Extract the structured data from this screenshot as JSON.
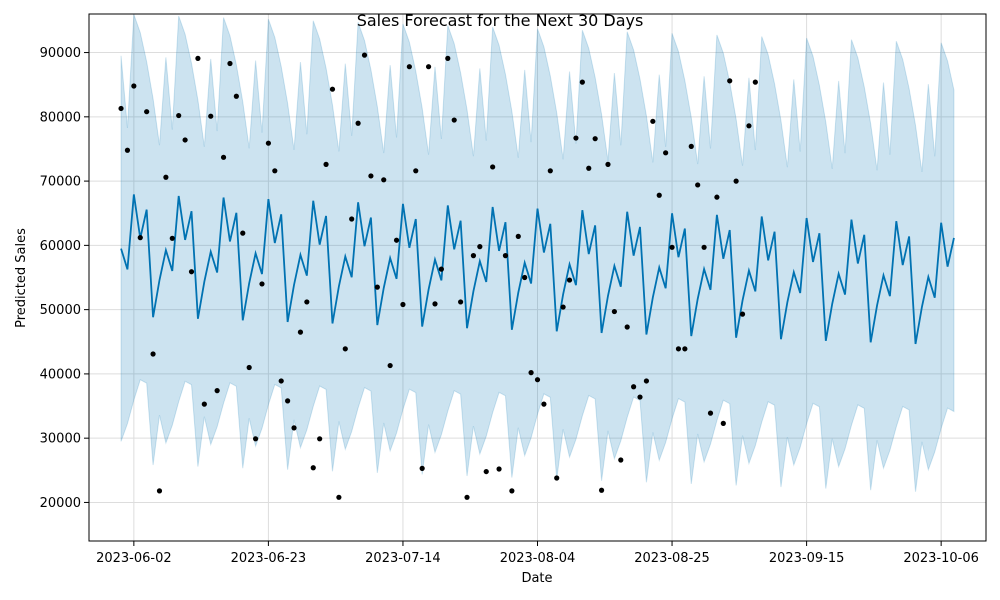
{
  "chart_data": {
    "type": "line",
    "title": "Sales Forecast for the Next 30 Days",
    "xlabel": "Date",
    "ylabel": "Predicted Sales",
    "x_range": [
      "2023-05-26",
      "2023-10-13"
    ],
    "ylim": [
      14000,
      96000
    ],
    "grid": true,
    "x_ticks": [
      "2023-06-02",
      "2023-06-23",
      "2023-07-14",
      "2023-08-04",
      "2023-08-25",
      "2023-09-15",
      "2023-10-06"
    ],
    "y_ticks": [
      20000,
      30000,
      40000,
      50000,
      60000,
      70000,
      80000,
      90000
    ],
    "y_tick_labels": [
      "20000",
      "30000",
      "40000",
      "50000",
      "60000",
      "70000",
      "80000",
      "90000"
    ],
    "colors": {
      "line": "#0072b2",
      "band": "#0072b2",
      "points": "#000000",
      "grid": "#dddddd"
    },
    "weekly_pattern": [
      59500,
      56300,
      68000,
      61200,
      65700,
      49000,
      54800
    ],
    "trend_per_day": -35,
    "interval_half_width": 26000,
    "forecast_start": "2023-05-31",
    "forecast_end": "2023-10-08",
    "observed": [
      {
        "x": "2023-05-31",
        "y": 81300
      },
      {
        "x": "2023-06-01",
        "y": 74800
      },
      {
        "x": "2023-06-02",
        "y": 84800
      },
      {
        "x": "2023-06-03",
        "y": 61200
      },
      {
        "x": "2023-06-04",
        "y": 80800
      },
      {
        "x": "2023-06-05",
        "y": 43100
      },
      {
        "x": "2023-06-06",
        "y": 21800
      },
      {
        "x": "2023-06-07",
        "y": 70600
      },
      {
        "x": "2023-06-08",
        "y": 61100
      },
      {
        "x": "2023-06-09",
        "y": 80200
      },
      {
        "x": "2023-06-10",
        "y": 76400
      },
      {
        "x": "2023-06-11",
        "y": 55900
      },
      {
        "x": "2023-06-12",
        "y": 89100
      },
      {
        "x": "2023-06-13",
        "y": 35300
      },
      {
        "x": "2023-06-14",
        "y": 80100
      },
      {
        "x": "2023-06-15",
        "y": 37400
      },
      {
        "x": "2023-06-16",
        "y": 73700
      },
      {
        "x": "2023-06-17",
        "y": 88300
      },
      {
        "x": "2023-06-18",
        "y": 83200
      },
      {
        "x": "2023-06-19",
        "y": 61900
      },
      {
        "x": "2023-06-20",
        "y": 41000
      },
      {
        "x": "2023-06-21",
        "y": 29900
      },
      {
        "x": "2023-06-22",
        "y": 54000
      },
      {
        "x": "2023-06-23",
        "y": 75900
      },
      {
        "x": "2023-06-24",
        "y": 71600
      },
      {
        "x": "2023-06-25",
        "y": 38900
      },
      {
        "x": "2023-06-26",
        "y": 35800
      },
      {
        "x": "2023-06-27",
        "y": 31600
      },
      {
        "x": "2023-06-28",
        "y": 46500
      },
      {
        "x": "2023-06-29",
        "y": 51200
      },
      {
        "x": "2023-06-30",
        "y": 25400
      },
      {
        "x": "2023-07-01",
        "y": 29900
      },
      {
        "x": "2023-07-02",
        "y": 72600
      },
      {
        "x": "2023-07-03",
        "y": 84300
      },
      {
        "x": "2023-07-04",
        "y": 20800
      },
      {
        "x": "2023-07-05",
        "y": 43900
      },
      {
        "x": "2023-07-06",
        "y": 64100
      },
      {
        "x": "2023-07-07",
        "y": 79000
      },
      {
        "x": "2023-07-08",
        "y": 89600
      },
      {
        "x": "2023-07-09",
        "y": 70800
      },
      {
        "x": "2023-07-10",
        "y": 53500
      },
      {
        "x": "2023-07-11",
        "y": 70200
      },
      {
        "x": "2023-07-12",
        "y": 41300
      },
      {
        "x": "2023-07-13",
        "y": 60800
      },
      {
        "x": "2023-07-14",
        "y": 50800
      },
      {
        "x": "2023-07-15",
        "y": 87800
      },
      {
        "x": "2023-07-16",
        "y": 71600
      },
      {
        "x": "2023-07-17",
        "y": 25300
      },
      {
        "x": "2023-07-18",
        "y": 87800
      },
      {
        "x": "2023-07-19",
        "y": 50900
      },
      {
        "x": "2023-07-20",
        "y": 56300
      },
      {
        "x": "2023-07-21",
        "y": 89100
      },
      {
        "x": "2023-07-22",
        "y": 79500
      },
      {
        "x": "2023-07-23",
        "y": 51200
      },
      {
        "x": "2023-07-24",
        "y": 20800
      },
      {
        "x": "2023-07-25",
        "y": 58400
      },
      {
        "x": "2023-07-26",
        "y": 59800
      },
      {
        "x": "2023-07-27",
        "y": 24800
      },
      {
        "x": "2023-07-28",
        "y": 72200
      },
      {
        "x": "2023-07-29",
        "y": 25200
      },
      {
        "x": "2023-07-30",
        "y": 58400
      },
      {
        "x": "2023-07-31",
        "y": 21800
      },
      {
        "x": "2023-08-01",
        "y": 61400
      },
      {
        "x": "2023-08-02",
        "y": 55000
      },
      {
        "x": "2023-08-03",
        "y": 40200
      },
      {
        "x": "2023-08-04",
        "y": 39100
      },
      {
        "x": "2023-08-05",
        "y": 35300
      },
      {
        "x": "2023-08-06",
        "y": 71600
      },
      {
        "x": "2023-08-07",
        "y": 23800
      },
      {
        "x": "2023-08-08",
        "y": 50400
      },
      {
        "x": "2023-08-09",
        "y": 54600
      },
      {
        "x": "2023-08-10",
        "y": 76700
      },
      {
        "x": "2023-08-11",
        "y": 85400
      },
      {
        "x": "2023-08-12",
        "y": 72000
      },
      {
        "x": "2023-08-13",
        "y": 76600
      },
      {
        "x": "2023-08-14",
        "y": 21900
      },
      {
        "x": "2023-08-15",
        "y": 72600
      },
      {
        "x": "2023-08-16",
        "y": 49700
      },
      {
        "x": "2023-08-17",
        "y": 26600
      },
      {
        "x": "2023-08-18",
        "y": 47300
      },
      {
        "x": "2023-08-19",
        "y": 38000
      },
      {
        "x": "2023-08-20",
        "y": 36400
      },
      {
        "x": "2023-08-21",
        "y": 38900
      },
      {
        "x": "2023-08-22",
        "y": 79300
      },
      {
        "x": "2023-08-23",
        "y": 67800
      },
      {
        "x": "2023-08-24",
        "y": 74400
      },
      {
        "x": "2023-08-25",
        "y": 59700
      },
      {
        "x": "2023-08-26",
        "y": 43900
      },
      {
        "x": "2023-08-27",
        "y": 43900
      },
      {
        "x": "2023-08-28",
        "y": 75400
      },
      {
        "x": "2023-08-29",
        "y": 69400
      },
      {
        "x": "2023-08-30",
        "y": 59700
      },
      {
        "x": "2023-08-31",
        "y": 33900
      },
      {
        "x": "2023-09-01",
        "y": 67500
      },
      {
        "x": "2023-09-02",
        "y": 32300
      },
      {
        "x": "2023-09-03",
        "y": 85600
      },
      {
        "x": "2023-09-04",
        "y": 70000
      },
      {
        "x": "2023-09-05",
        "y": 49300
      },
      {
        "x": "2023-09-06",
        "y": 78600
      },
      {
        "x": "2023-09-07",
        "y": 85400
      }
    ]
  }
}
